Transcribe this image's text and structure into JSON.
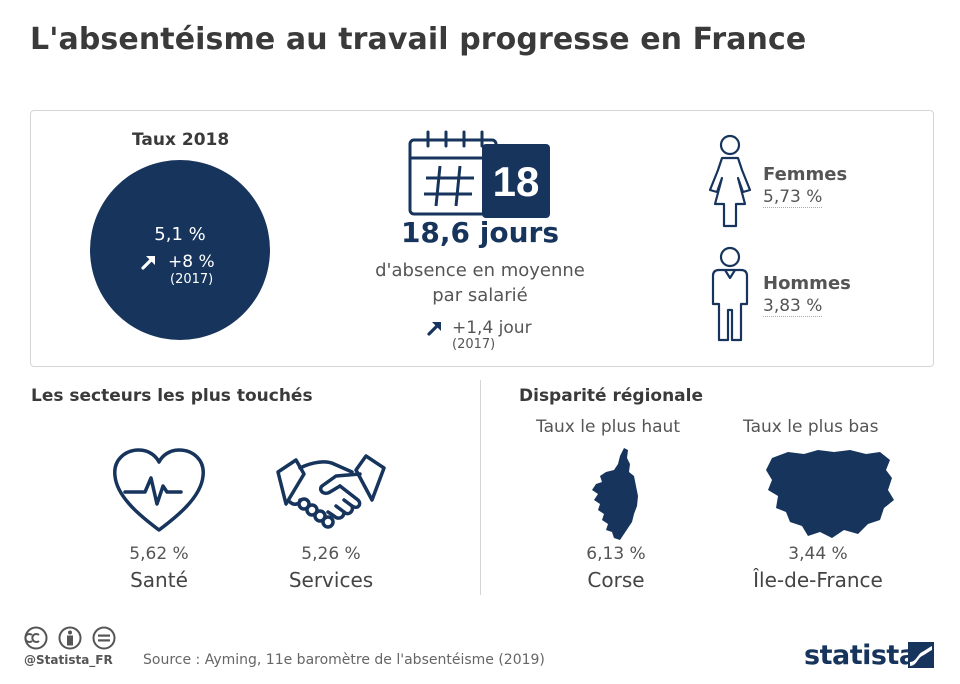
{
  "title": "L'absentéisme au travail progresse en France",
  "colors": {
    "accent": "#16345c",
    "text": "#3a3a3a",
    "muted": "#555555",
    "border": "#d5d5d5"
  },
  "chart_data": {
    "type": "table",
    "rate": {
      "label": "Taux 2018",
      "value": "5,1 %",
      "change": "+8 %",
      "change_year": "(2017)"
    },
    "days": {
      "calendar_number": "18",
      "value": "18,6 jours",
      "desc_line1": "d'absence en moyenne",
      "desc_line2": "par salarié",
      "change": "+1,4 jour",
      "change_year": "(2017)"
    },
    "gender": [
      {
        "label": "Femmes",
        "value": "5,73 %",
        "icon": "woman-icon"
      },
      {
        "label": "Hommes",
        "value": "3,83 %",
        "icon": "man-icon"
      }
    ],
    "sectors": {
      "title": "Les secteurs les plus touchés",
      "items": [
        {
          "value": "5,62 %",
          "label": "Santé",
          "icon": "heart-pulse-icon"
        },
        {
          "value": "5,26 %",
          "label": "Services",
          "icon": "handshake-icon"
        }
      ]
    },
    "regional": {
      "title": "Disparité régionale",
      "highest": {
        "heading": "Taux le plus haut",
        "value": "6,13 %",
        "label": "Corse",
        "icon": "corse-map-icon"
      },
      "lowest": {
        "heading": "Taux le plus bas",
        "value": "3,44 %",
        "label": "Île-de-France",
        "icon": "ile-de-france-map-icon"
      }
    }
  },
  "footer": {
    "handle": "@Statista_FR",
    "source": "Source : Ayming, 11e baromètre de l'absentéisme (2019)",
    "logo": "statista"
  }
}
